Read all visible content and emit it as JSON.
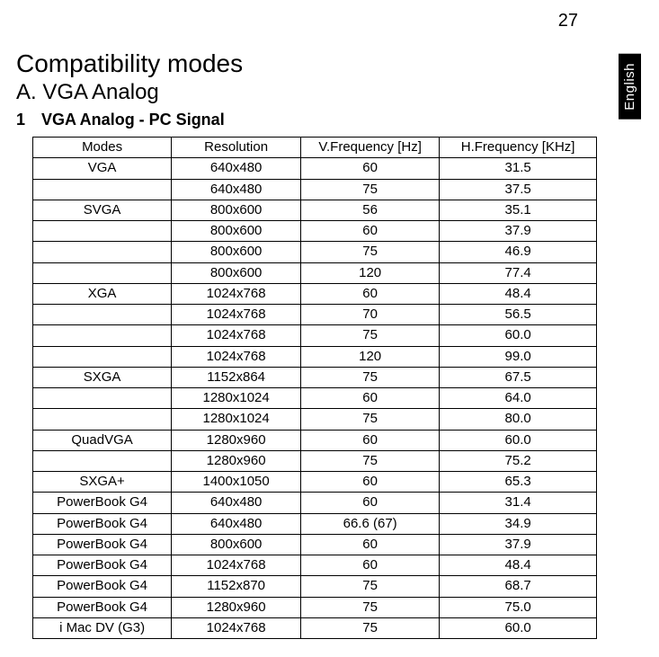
{
  "page_number": "27",
  "language_tab": "English",
  "title": "Compatibility modes",
  "section_heading": "A. VGA Analog",
  "subsection_number": "1",
  "subsection_text": "VGA Analog - PC Signal",
  "table": {
    "columns": [
      "Modes",
      "Resolution",
      "V.Frequency [Hz]",
      "H.Frequency [KHz]"
    ],
    "rows": [
      [
        "VGA",
        "640x480",
        "60",
        "31.5"
      ],
      [
        "",
        "640x480",
        "75",
        "37.5"
      ],
      [
        "SVGA",
        "800x600",
        "56",
        "35.1"
      ],
      [
        "",
        "800x600",
        "60",
        "37.9"
      ],
      [
        "",
        "800x600",
        "75",
        "46.9"
      ],
      [
        "",
        "800x600",
        "120",
        "77.4"
      ],
      [
        "XGA",
        "1024x768",
        "60",
        "48.4"
      ],
      [
        "",
        "1024x768",
        "70",
        "56.5"
      ],
      [
        "",
        "1024x768",
        "75",
        "60.0"
      ],
      [
        "",
        "1024x768",
        "120",
        "99.0"
      ],
      [
        "SXGA",
        "1152x864",
        "75",
        "67.5"
      ],
      [
        "",
        "1280x1024",
        "60",
        "64.0"
      ],
      [
        "",
        "1280x1024",
        "75",
        "80.0"
      ],
      [
        "QuadVGA",
        "1280x960",
        "60",
        "60.0"
      ],
      [
        "",
        "1280x960",
        "75",
        "75.2"
      ],
      [
        "SXGA+",
        "1400x1050",
        "60",
        "65.3"
      ],
      [
        "PowerBook G4",
        "640x480",
        "60",
        "31.4"
      ],
      [
        "PowerBook G4",
        "640x480",
        "66.6 (67)",
        "34.9"
      ],
      [
        "PowerBook G4",
        "800x600",
        "60",
        "37.9"
      ],
      [
        "PowerBook G4",
        "1024x768",
        "60",
        "48.4"
      ],
      [
        "PowerBook G4",
        "1152x870",
        "75",
        "68.7"
      ],
      [
        "PowerBook G4",
        "1280x960",
        "75",
        "75.0"
      ],
      [
        "i Mac DV (G3)",
        "1024x768",
        "75",
        "60.0"
      ]
    ]
  }
}
